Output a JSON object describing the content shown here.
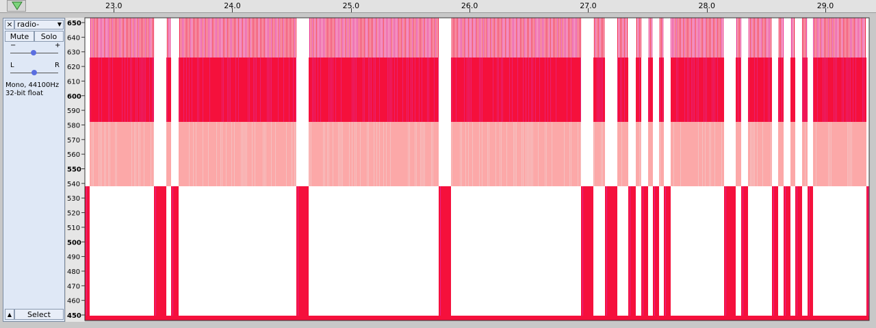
{
  "ruler": {
    "labels": [
      "23.0",
      "24.0",
      "25.0",
      "26.0",
      "27.0",
      "28.0",
      "29.0"
    ]
  },
  "track": {
    "name": "radio-transm",
    "mute": "Mute",
    "solo": "Solo",
    "gain_min": "−",
    "gain_max": "+",
    "pan_left": "L",
    "pan_right": "R",
    "format": "Mono, 44100Hz",
    "bit_depth": "32-bit float",
    "select": "Select"
  },
  "axis": {
    "labels": [
      "650",
      "640",
      "630",
      "620",
      "610",
      "600",
      "590",
      "580",
      "570",
      "560",
      "550",
      "540",
      "530",
      "520",
      "510",
      "500",
      "490",
      "480",
      "470",
      "460",
      "450"
    ]
  }
}
